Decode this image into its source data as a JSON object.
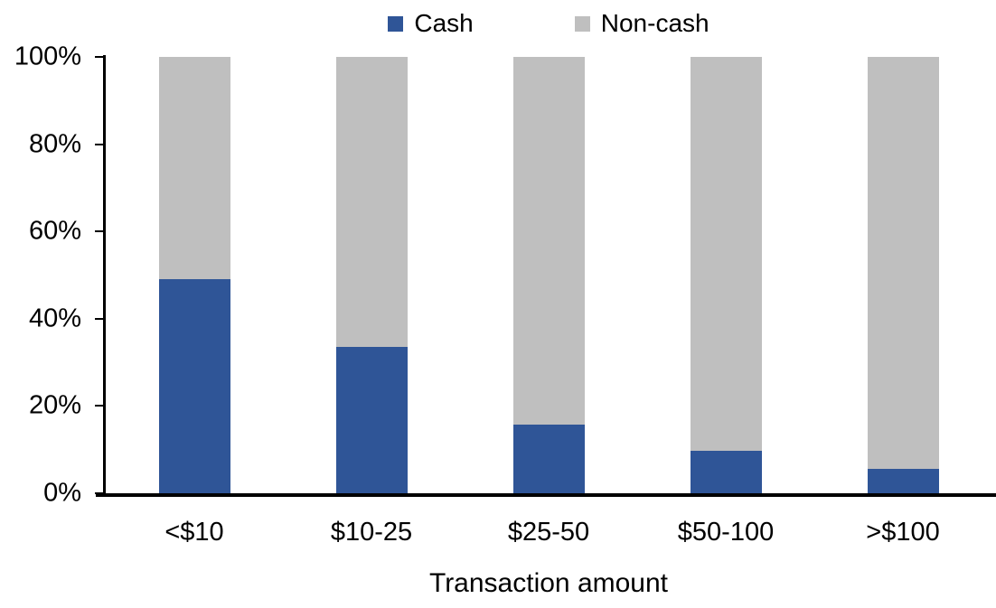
{
  "chart_data": {
    "type": "bar",
    "stacked": true,
    "stack_mode": "percent",
    "categories": [
      "<$10",
      "$10-25",
      "$25-50",
      "$50-100",
      ">$100"
    ],
    "series": [
      {
        "name": "Cash",
        "color": "#2F5597",
        "values": [
          49,
          33.5,
          15.7,
          9.7,
          5.5
        ]
      },
      {
        "name": "Non-cash",
        "color": "#BFBFBF",
        "values": [
          51,
          66.5,
          84.3,
          90.3,
          94.5
        ]
      }
    ],
    "title": "",
    "xlabel": "Transaction amount",
    "ylabel": "",
    "ylim": [
      0,
      100
    ],
    "y_ticks": [
      "0%",
      "20%",
      "40%",
      "60%",
      "80%",
      "100%"
    ],
    "grid": false,
    "legend_position": "top-center"
  },
  "legend": {
    "items": [
      {
        "label": "Cash",
        "color": "#2F5597"
      },
      {
        "label": "Non-cash",
        "color": "#BFBFBF"
      }
    ]
  },
  "axes": {
    "y_tick_labels_top_to_bottom": [
      "100%",
      "80%",
      "60%",
      "40%",
      "20%",
      "0%"
    ],
    "x_axis_title": "Transaction amount"
  },
  "colors": {
    "cash": "#2F5597",
    "non_cash": "#BFBFBF",
    "axis": "#000000",
    "background": "#FFFFFF"
  }
}
